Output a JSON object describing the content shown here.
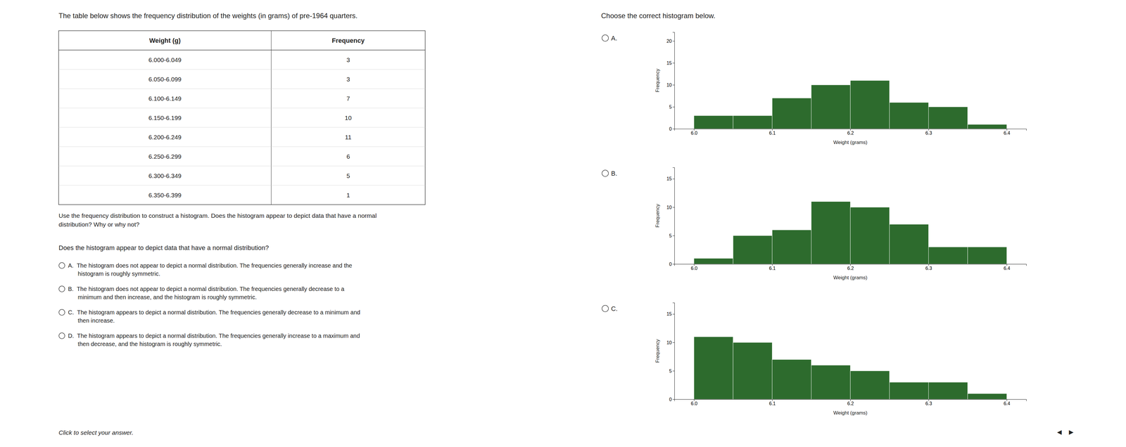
{
  "title_left": "The table below shows the frequency distribution of the weights (in grams) of pre-1964 quarters.",
  "table": {
    "headers": [
      "Weight (g)",
      "Frequency"
    ],
    "rows": [
      "6.000-6.049",
      "6.050-6.099",
      "6.100-6.149",
      "6.150-6.199",
      "6.200-6.249",
      "6.250-6.299",
      "6.300-6.349",
      "6.350-6.399"
    ],
    "values": [
      3,
      3,
      7,
      10,
      11,
      6,
      5,
      1
    ]
  },
  "question_text": "Use the frequency distribution to construct a histogram. Does the histogram appear to depict data that have a normal\ndistribution? Why or why not?",
  "title_right": "Choose the correct histogram below.",
  "question_2": "Does the histogram appear to depict data that have a normal distribution?",
  "answer_choices": [
    "A.  The histogram does not appear to depict a normal distribution. The frequencies generally increase and the\n      histogram is roughly symmetric.",
    "B.  The histogram does not appear to depict a normal distribution. The frequencies generally decrease to a\n      minimum and then increase, and the histogram is roughly symmetric.",
    "C.  The histogram appears to depict a normal distribution. The frequencies generally decrease to a minimum and\n      then increase.",
    "D.  The histogram appears to depict a normal distribution. The frequencies generally increase to a maximum and\n      then decrease, and the histogram is roughly symmetric."
  ],
  "click_text": "Click to select your answer.",
  "nav_text": "◄  ►",
  "chart_data": [
    {
      "type": "histogram",
      "title": "A.",
      "bins": [
        6.0,
        6.05,
        6.1,
        6.15,
        6.2,
        6.25,
        6.3,
        6.35,
        6.4
      ],
      "values": [
        3,
        3,
        7,
        10,
        11,
        6,
        5,
        1
      ],
      "color": "#2d6b2d",
      "x_label": "Weight (grams)",
      "y_label": "Frequency",
      "xlim": [
        5.975,
        6.425
      ],
      "xticks": [
        {
          "value": 6.0,
          "label": "6.0"
        },
        6.1,
        6.2,
        6.3,
        6.4
      ],
      "ylim": [
        0,
        22
      ],
      "yticks": [
        0,
        5,
        10,
        15,
        20
      ],
      "grid": false
    },
    {
      "type": "histogram",
      "title": "B.",
      "bins": [
        6.0,
        6.05,
        6.1,
        6.15,
        6.2,
        6.25,
        6.3,
        6.35,
        6.4
      ],
      "values": [
        1,
        5,
        6,
        11,
        10,
        7,
        3,
        3
      ],
      "color": "#2d6b2d",
      "x_label": "Weight (grams)",
      "y_label": "Frequency",
      "xlim": [
        5.975,
        6.425
      ],
      "xticks": [
        {
          "value": 6.0,
          "label": "6.0"
        },
        6.1,
        6.2,
        6.3,
        6.4
      ],
      "ylim": [
        0,
        17
      ],
      "yticks": [
        0,
        5,
        10,
        15
      ],
      "grid": false
    },
    {
      "type": "histogram",
      "title": "C.",
      "bins": [
        6.0,
        6.05,
        6.1,
        6.15,
        6.2,
        6.25,
        6.3,
        6.35,
        6.4
      ],
      "values": [
        11,
        10,
        7,
        6,
        5,
        3,
        3,
        1
      ],
      "color": "#2d6b2d",
      "x_label": "Weight (grams)",
      "y_label": "Frequency",
      "xlim": [
        5.975,
        6.425
      ],
      "xticks": [
        {
          "value": 6.0,
          "label": "6.0"
        },
        6.1,
        6.2,
        6.3,
        6.4
      ],
      "ylim": [
        0,
        17
      ],
      "yticks": [
        0,
        5,
        10,
        15
      ],
      "grid": false
    }
  ]
}
